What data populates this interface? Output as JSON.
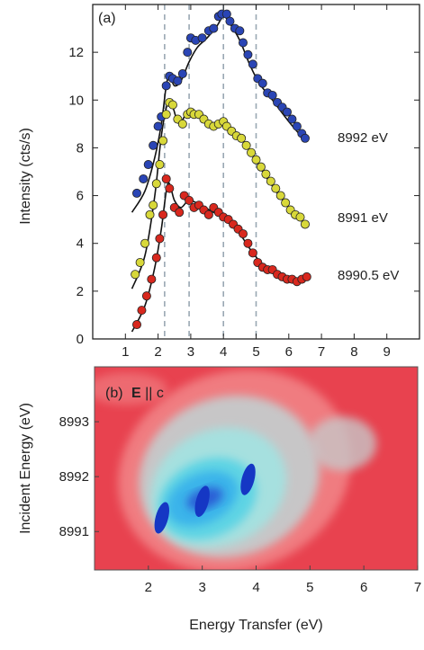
{
  "chart_data": [
    {
      "type": "scatter",
      "panel_label": "(a)",
      "ylabel": "Intensity (cts/s)",
      "xlim": [
        0,
        10
      ],
      "ylim": [
        0,
        14
      ],
      "xticks": [
        "1",
        "2",
        "3",
        "4",
        "5",
        "6",
        "7",
        "8",
        "9"
      ],
      "yticks": [
        "0",
        "2",
        "4",
        "6",
        "8",
        "10",
        "12"
      ],
      "dashed_lines_x": [
        2.2,
        2.95,
        4.0,
        5.0
      ],
      "series": [
        {
          "name": "8992 eV",
          "color": "#2a45b5",
          "points": [
            [
              1.35,
              6.1
            ],
            [
              1.55,
              6.7
            ],
            [
              1.7,
              7.3
            ],
            [
              1.85,
              8.1
            ],
            [
              2.0,
              8.9
            ],
            [
              2.1,
              9.3
            ],
            [
              2.25,
              10.6
            ],
            [
              2.35,
              11.0
            ],
            [
              2.45,
              10.9
            ],
            [
              2.6,
              10.8
            ],
            [
              2.75,
              11.1
            ],
            [
              2.9,
              12.0
            ],
            [
              3.0,
              12.6
            ],
            [
              3.15,
              12.5
            ],
            [
              3.35,
              12.6
            ],
            [
              3.55,
              12.9
            ],
            [
              3.7,
              13.0
            ],
            [
              3.85,
              13.5
            ],
            [
              3.95,
              13.6
            ],
            [
              4.1,
              13.6
            ],
            [
              4.2,
              13.3
            ],
            [
              4.35,
              13.0
            ],
            [
              4.5,
              12.9
            ],
            [
              4.6,
              12.4
            ],
            [
              4.75,
              11.9
            ],
            [
              4.9,
              11.5
            ],
            [
              5.05,
              10.9
            ],
            [
              5.2,
              10.7
            ],
            [
              5.35,
              10.3
            ],
            [
              5.5,
              10.2
            ],
            [
              5.65,
              9.9
            ],
            [
              5.8,
              9.7
            ],
            [
              5.95,
              9.5
            ],
            [
              6.1,
              9.2
            ],
            [
              6.25,
              8.9
            ],
            [
              6.4,
              8.6
            ],
            [
              6.5,
              8.4
            ]
          ],
          "fit": [
            [
              1.2,
              5.3
            ],
            [
              1.6,
              6.2
            ],
            [
              1.9,
              7.6
            ],
            [
              2.1,
              9.0
            ],
            [
              2.25,
              10.6
            ],
            [
              2.35,
              11.0
            ],
            [
              2.5,
              10.6
            ],
            [
              2.7,
              10.8
            ],
            [
              2.95,
              11.6
            ],
            [
              3.2,
              12.2
            ],
            [
              3.5,
              12.6
            ],
            [
              3.8,
              13.1
            ],
            [
              4.0,
              13.5
            ],
            [
              4.2,
              13.2
            ],
            [
              4.5,
              12.5
            ],
            [
              4.8,
              11.5
            ],
            [
              5.1,
              10.7
            ],
            [
              5.5,
              10.0
            ],
            [
              6.0,
              9.1
            ],
            [
              6.5,
              8.3
            ]
          ]
        },
        {
          "name": "8991 eV",
          "color": "#d8d83a",
          "points": [
            [
              1.3,
              2.7
            ],
            [
              1.45,
              3.2
            ],
            [
              1.6,
              4.0
            ],
            [
              1.75,
              5.2
            ],
            [
              1.85,
              5.6
            ],
            [
              1.95,
              6.5
            ],
            [
              2.05,
              7.3
            ],
            [
              2.15,
              8.3
            ],
            [
              2.25,
              9.4
            ],
            [
              2.35,
              9.9
            ],
            [
              2.45,
              9.8
            ],
            [
              2.6,
              9.2
            ],
            [
              2.75,
              9.0
            ],
            [
              2.9,
              9.4
            ],
            [
              3.0,
              9.5
            ],
            [
              3.1,
              9.4
            ],
            [
              3.25,
              9.4
            ],
            [
              3.4,
              9.2
            ],
            [
              3.55,
              9.0
            ],
            [
              3.7,
              8.9
            ],
            [
              3.85,
              9.0
            ],
            [
              4.0,
              9.1
            ],
            [
              4.1,
              8.9
            ],
            [
              4.25,
              8.7
            ],
            [
              4.4,
              8.5
            ],
            [
              4.55,
              8.4
            ],
            [
              4.7,
              8.1
            ],
            [
              4.85,
              7.8
            ],
            [
              5.0,
              7.5
            ],
            [
              5.15,
              7.2
            ],
            [
              5.3,
              6.9
            ],
            [
              5.45,
              6.6
            ],
            [
              5.6,
              6.3
            ],
            [
              5.75,
              6.0
            ],
            [
              5.9,
              5.7
            ],
            [
              6.05,
              5.4
            ],
            [
              6.2,
              5.2
            ],
            [
              6.35,
              5.1
            ],
            [
              6.5,
              4.8
            ]
          ],
          "fit": [
            [
              1.2,
              2.1
            ],
            [
              1.6,
              3.5
            ],
            [
              1.9,
              6.0
            ],
            [
              2.1,
              8.5
            ],
            [
              2.3,
              9.9
            ],
            [
              2.45,
              9.7
            ],
            [
              2.65,
              9.0
            ],
            [
              2.95,
              9.6
            ],
            [
              3.3,
              9.3
            ],
            [
              3.7,
              9.0
            ],
            [
              4.0,
              9.1
            ],
            [
              4.4,
              8.6
            ],
            [
              4.8,
              7.9
            ],
            [
              5.2,
              7.0
            ],
            [
              5.6,
              6.2
            ],
            [
              6.0,
              5.5
            ],
            [
              6.5,
              4.8
            ]
          ]
        },
        {
          "name": "8990.5 eV",
          "color": "#d8281e",
          "points": [
            [
              1.35,
              0.6
            ],
            [
              1.5,
              1.2
            ],
            [
              1.65,
              1.8
            ],
            [
              1.8,
              2.5
            ],
            [
              1.95,
              3.4
            ],
            [
              2.05,
              4.2
            ],
            [
              2.15,
              5.2
            ],
            [
              2.25,
              6.7
            ],
            [
              2.35,
              6.3
            ],
            [
              2.5,
              5.5
            ],
            [
              2.65,
              5.3
            ],
            [
              2.8,
              6.0
            ],
            [
              2.95,
              5.8
            ],
            [
              3.1,
              5.5
            ],
            [
              3.25,
              5.6
            ],
            [
              3.4,
              5.4
            ],
            [
              3.55,
              5.2
            ],
            [
              3.7,
              5.5
            ],
            [
              3.85,
              5.3
            ],
            [
              4.0,
              5.1
            ],
            [
              4.15,
              5.0
            ],
            [
              4.3,
              4.8
            ],
            [
              4.45,
              4.6
            ],
            [
              4.6,
              4.4
            ],
            [
              4.75,
              4.0
            ],
            [
              4.9,
              3.6
            ],
            [
              5.05,
              3.2
            ],
            [
              5.2,
              3.0
            ],
            [
              5.35,
              2.9
            ],
            [
              5.5,
              2.9
            ],
            [
              5.65,
              2.7
            ],
            [
              5.8,
              2.6
            ],
            [
              5.95,
              2.5
            ],
            [
              6.1,
              2.5
            ],
            [
              6.25,
              2.4
            ],
            [
              6.4,
              2.5
            ],
            [
              6.55,
              2.6
            ]
          ],
          "fit": [
            [
              1.2,
              0.3
            ],
            [
              1.6,
              1.4
            ],
            [
              1.9,
              3.0
            ],
            [
              2.1,
              4.6
            ],
            [
              2.3,
              6.5
            ],
            [
              2.5,
              5.8
            ],
            [
              2.7,
              5.5
            ],
            [
              2.95,
              5.8
            ],
            [
              3.3,
              5.6
            ],
            [
              3.7,
              5.3
            ],
            [
              4.1,
              5.0
            ],
            [
              4.5,
              4.4
            ],
            [
              4.9,
              3.6
            ],
            [
              5.3,
              3.0
            ],
            [
              5.8,
              2.6
            ],
            [
              6.5,
              2.4
            ]
          ]
        }
      ]
    },
    {
      "type": "heatmap",
      "panel_label_prefix": "(b)",
      "panel_label_bold": "E",
      "panel_label_rest": " || c",
      "xlabel": "Energy Transfer (eV)",
      "ylabel": "Incident Energy (eV)",
      "xlim": [
        1,
        7
      ],
      "ylim": [
        8990.3,
        8994.0
      ],
      "xticks": [
        "2",
        "3",
        "4",
        "5",
        "6",
        "7"
      ],
      "yticks": [
        "8991",
        "8992",
        "8993"
      ],
      "colormap": [
        "#e8424f",
        "#f07c80",
        "#c7c6c7",
        "#a6e0df",
        "#5fd4e4",
        "#3bb4ea",
        "#2a5fd6",
        "#1537c4"
      ],
      "peaks": [
        {
          "x": 2.25,
          "y": 8991.25,
          "value": 1.0
        },
        {
          "x": 3.0,
          "y": 8991.55,
          "value": 0.95
        },
        {
          "x": 3.85,
          "y": 8991.95,
          "value": 1.0
        }
      ]
    }
  ]
}
